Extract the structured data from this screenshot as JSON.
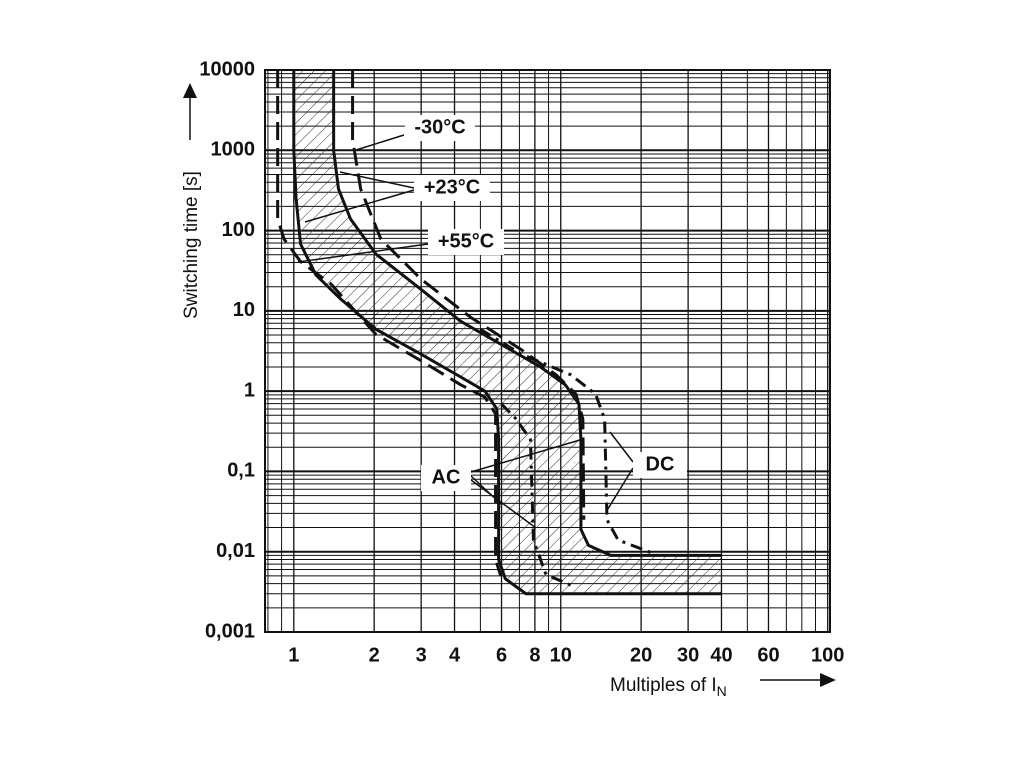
{
  "chart_data": {
    "type": "line",
    "y_label": "Switching time [s]",
    "x_label": "Multiples of I",
    "x_label_subscript": "N",
    "log_x": true,
    "log_y": true,
    "grid": true,
    "xlim": [
      0.78,
      102
    ],
    "ylim": [
      0.001,
      10000
    ],
    "xticks": [
      1,
      2,
      3,
      4,
      6,
      8,
      10,
      20,
      30,
      40,
      60,
      100
    ],
    "yticks": [
      {
        "value": 0.001,
        "label": "0,001"
      },
      {
        "value": 0.01,
        "label": "0,01"
      },
      {
        "value": 0.1,
        "label": "0,1"
      },
      1,
      10,
      100,
      1000,
      10000
    ],
    "xgrid": [
      0.8,
      0.9,
      5,
      7,
      9,
      50,
      70,
      80,
      90
    ],
    "ygrid": [
      0.002,
      0.003,
      0.004,
      0.005,
      0.006,
      0.007,
      0.008,
      0.009,
      0.02,
      0.03,
      0.04,
      0.05,
      0.06,
      0.07,
      0.08,
      0.09,
      0.2,
      0.3,
      0.4,
      0.5,
      0.6,
      0.7,
      0.8,
      0.9,
      2,
      3,
      4,
      5,
      6,
      7,
      8,
      9,
      20,
      30,
      40,
      50,
      60,
      70,
      80,
      90,
      200,
      300,
      400,
      500,
      600,
      700,
      800,
      900,
      2000,
      3000,
      4000,
      5000,
      6000,
      7000,
      8000,
      9000
    ],
    "color": "#111111",
    "hatch": [
      0,
      1
    ],
    "series": [
      {
        "style": "solid",
        "x": [
          1.0,
          1.0,
          1.02,
          1.06,
          1.21,
          1.5,
          2.03,
          2.99,
          4.22,
          5.2,
          5.76,
          5.85,
          5.85,
          6.2,
          7.4,
          40
        ],
        "values": [
          10000,
          1000,
          250,
          68,
          28,
          14,
          5.9,
          2.9,
          1.5,
          1.0,
          0.6,
          0.25,
          0.008,
          0.0046,
          0.003,
          0.003
        ]
      },
      {
        "style": "solid",
        "x": [
          1.41,
          1.41,
          1.47,
          1.63,
          2.03,
          2.99,
          4.22,
          5.96,
          8.4,
          10.4,
          11.7,
          11.9,
          11.9,
          12.7,
          15.4,
          40
        ],
        "values": [
          10000,
          1000,
          330,
          140,
          51,
          18.6,
          7.4,
          3.85,
          2.0,
          1.2,
          0.69,
          0.25,
          0.019,
          0.012,
          0.009,
          0.009
        ]
      },
      {
        "style": "dashed",
        "x": [
          0.87,
          0.87,
          0.92,
          1.06,
          1.38,
          2.03,
          2.99,
          4.22,
          5.2,
          5.7,
          5.7,
          5.96
        ],
        "values": [
          10000,
          140,
          78,
          41,
          21.5,
          5.1,
          2.4,
          1.2,
          0.84,
          0.52,
          0.008,
          0.005
        ]
      },
      {
        "style": "dashed",
        "x": [
          1.66,
          1.66,
          1.78,
          2.12,
          2.99,
          4.6,
          7.1,
          9.6,
          11.4,
          12.1,
          12.2
        ],
        "values": [
          10000,
          1370,
          330,
          78,
          25,
          8.3,
          3.3,
          1.6,
          0.92,
          0.45,
          0.025
        ]
      },
      {
        "style": "dashdot",
        "x": [
          5.0,
          7.1,
          10.9,
          13.5,
          14.6,
          14.9,
          16.4,
          21.7
        ],
        "values": [
          5.9,
          2.9,
          1.6,
          0.92,
          0.45,
          0.025,
          0.014,
          0.0098
        ]
      },
      {
        "style": "dashdot",
        "x": [
          6,
          6.8,
          7.7,
          7.9,
          8.8,
          11.4
        ],
        "values": [
          0.69,
          0.45,
          0.25,
          0.014,
          0.0052,
          0.0036
        ]
      }
    ],
    "annotations": [
      "-30°C",
      "+23°C",
      "+55°C",
      "AC",
      "DC"
    ]
  }
}
